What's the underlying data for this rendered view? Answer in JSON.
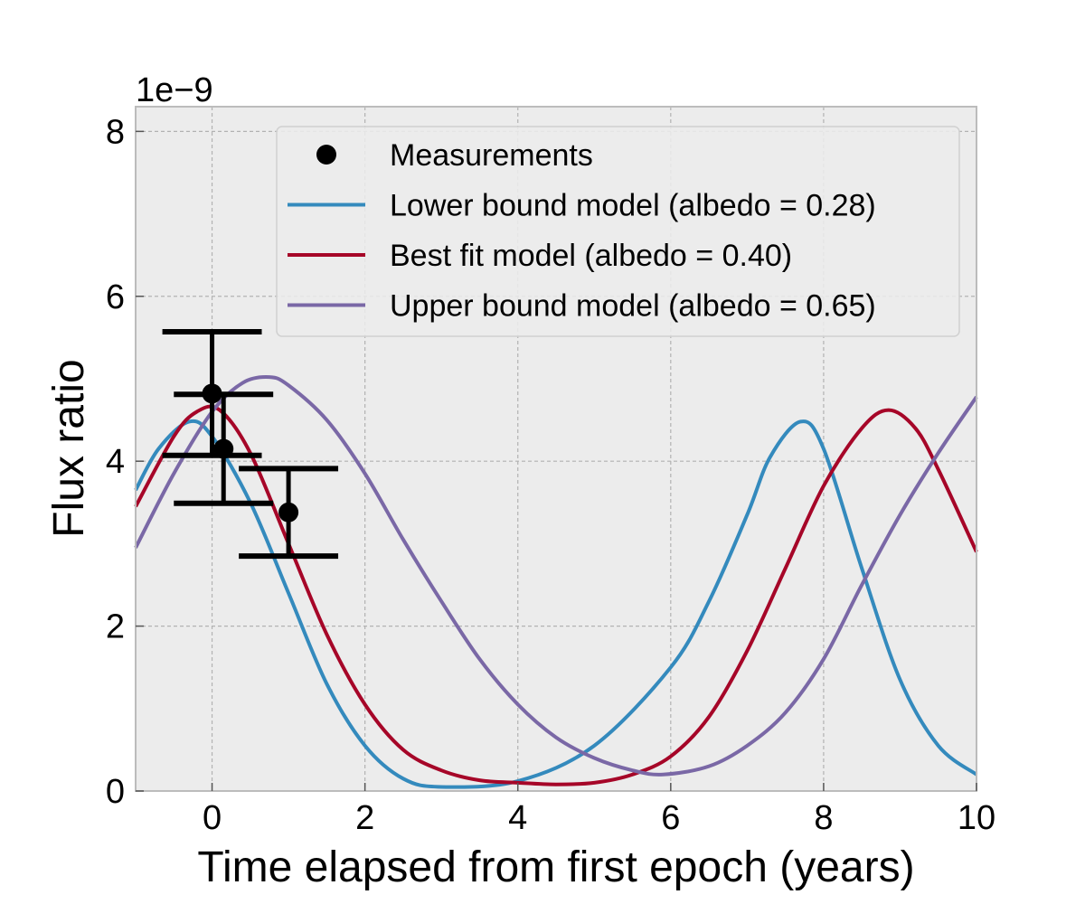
{
  "chart_data": {
    "type": "line",
    "title": "",
    "xlabel": "Time elapsed from first epoch (years)",
    "ylabel": "Flux ratio",
    "y_offset_label": "1e−9",
    "xlim": [
      -1,
      10
    ],
    "ylim": [
      0,
      8.3
    ],
    "x_ticks": [
      0,
      2,
      4,
      6,
      8,
      10
    ],
    "x_tick_labels": [
      "0",
      "2",
      "4",
      "6",
      "8",
      "10"
    ],
    "y_ticks": [
      0,
      2,
      4,
      6,
      8
    ],
    "y_tick_labels": [
      "0",
      "2",
      "4",
      "6",
      "8"
    ],
    "grid": true,
    "legend_position": "top-right",
    "background": "#ececec",
    "measurements": {
      "name": "Measurements",
      "color": "#000000",
      "points": [
        {
          "x": 0.0,
          "y": 4.82,
          "yerr": 0.75,
          "xerr": 0.65
        },
        {
          "x": 0.15,
          "y": 4.15,
          "yerr": 0.66,
          "xerr": 0.65
        },
        {
          "x": 1.0,
          "y": 3.38,
          "yerr": 0.53,
          "xerr": 0.65
        }
      ]
    },
    "series": [
      {
        "name": "Lower bound model (albedo = 0.28)",
        "color": "#348abd",
        "x": [
          -1.0,
          -0.7,
          -0.3,
          0.0,
          0.5,
          1.0,
          1.5,
          2.0,
          2.5,
          3.0,
          4.0,
          5.0,
          6.0,
          6.5,
          7.0,
          7.3,
          7.7,
          8.0,
          8.5,
          9.0,
          9.5,
          10.0
        ],
        "values": [
          3.65,
          4.15,
          4.48,
          4.3,
          3.5,
          2.4,
          1.3,
          0.55,
          0.15,
          0.05,
          0.12,
          0.55,
          1.5,
          2.3,
          3.35,
          4.05,
          4.48,
          4.15,
          2.7,
          1.35,
          0.55,
          0.2
        ]
      },
      {
        "name": "Best fit model (albedo = 0.40)",
        "color": "#a60628",
        "x": [
          -1.0,
          -0.5,
          -0.2,
          0.1,
          0.5,
          1.0,
          1.5,
          2.0,
          2.5,
          3.0,
          3.5,
          4.0,
          4.5,
          5.0,
          5.5,
          6.0,
          6.5,
          7.0,
          7.5,
          8.0,
          8.5,
          8.85,
          9.2,
          9.5,
          10.0
        ],
        "values": [
          3.45,
          4.3,
          4.6,
          4.62,
          4.1,
          3.0,
          1.9,
          1.05,
          0.5,
          0.25,
          0.13,
          0.1,
          0.08,
          0.1,
          0.2,
          0.42,
          0.9,
          1.7,
          2.7,
          3.7,
          4.4,
          4.62,
          4.4,
          3.9,
          2.9
        ]
      },
      {
        "name": "Upper bound model (albedo = 0.65)",
        "color": "#7a68a6",
        "x": [
          -1.0,
          -0.5,
          0.0,
          0.4,
          0.75,
          1.0,
          1.5,
          2.0,
          2.5,
          3.0,
          3.5,
          4.0,
          4.5,
          5.0,
          5.5,
          5.9,
          6.5,
          7.0,
          7.5,
          8.0,
          8.5,
          9.0,
          9.5,
          10.0
        ],
        "values": [
          2.95,
          3.85,
          4.6,
          4.95,
          5.02,
          4.92,
          4.5,
          3.85,
          3.05,
          2.3,
          1.6,
          1.05,
          0.65,
          0.4,
          0.25,
          0.2,
          0.3,
          0.55,
          0.95,
          1.6,
          2.5,
          3.35,
          4.1,
          4.78
        ]
      }
    ]
  }
}
